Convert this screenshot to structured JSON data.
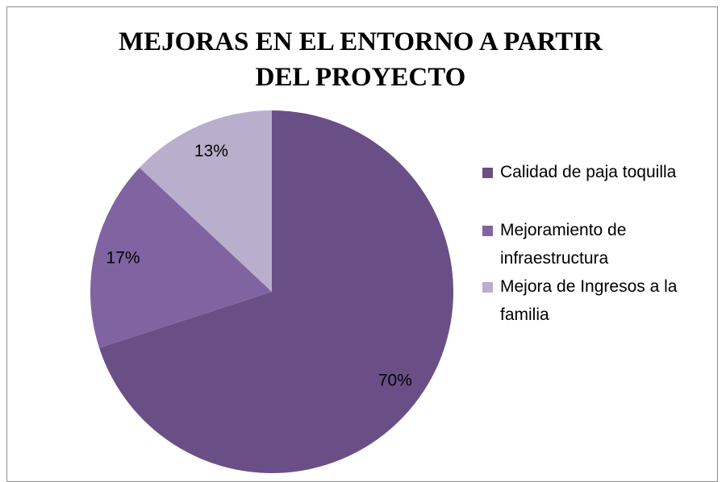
{
  "chart_data": {
    "type": "pie",
    "title": "MEJORAS EN EL ENTORNO A PARTIR DEL PROYECTO",
    "categories": [
      "Calidad de paja toquilla",
      "Mejoramiento de infraestructura",
      "Mejora de Ingresos a la familia"
    ],
    "values": [
      70,
      17,
      13
    ],
    "value_labels": [
      "70%",
      "17%",
      "13%"
    ],
    "colors": [
      "#6a4f87",
      "#8064a2",
      "#b9aecc"
    ],
    "legend": "right"
  }
}
